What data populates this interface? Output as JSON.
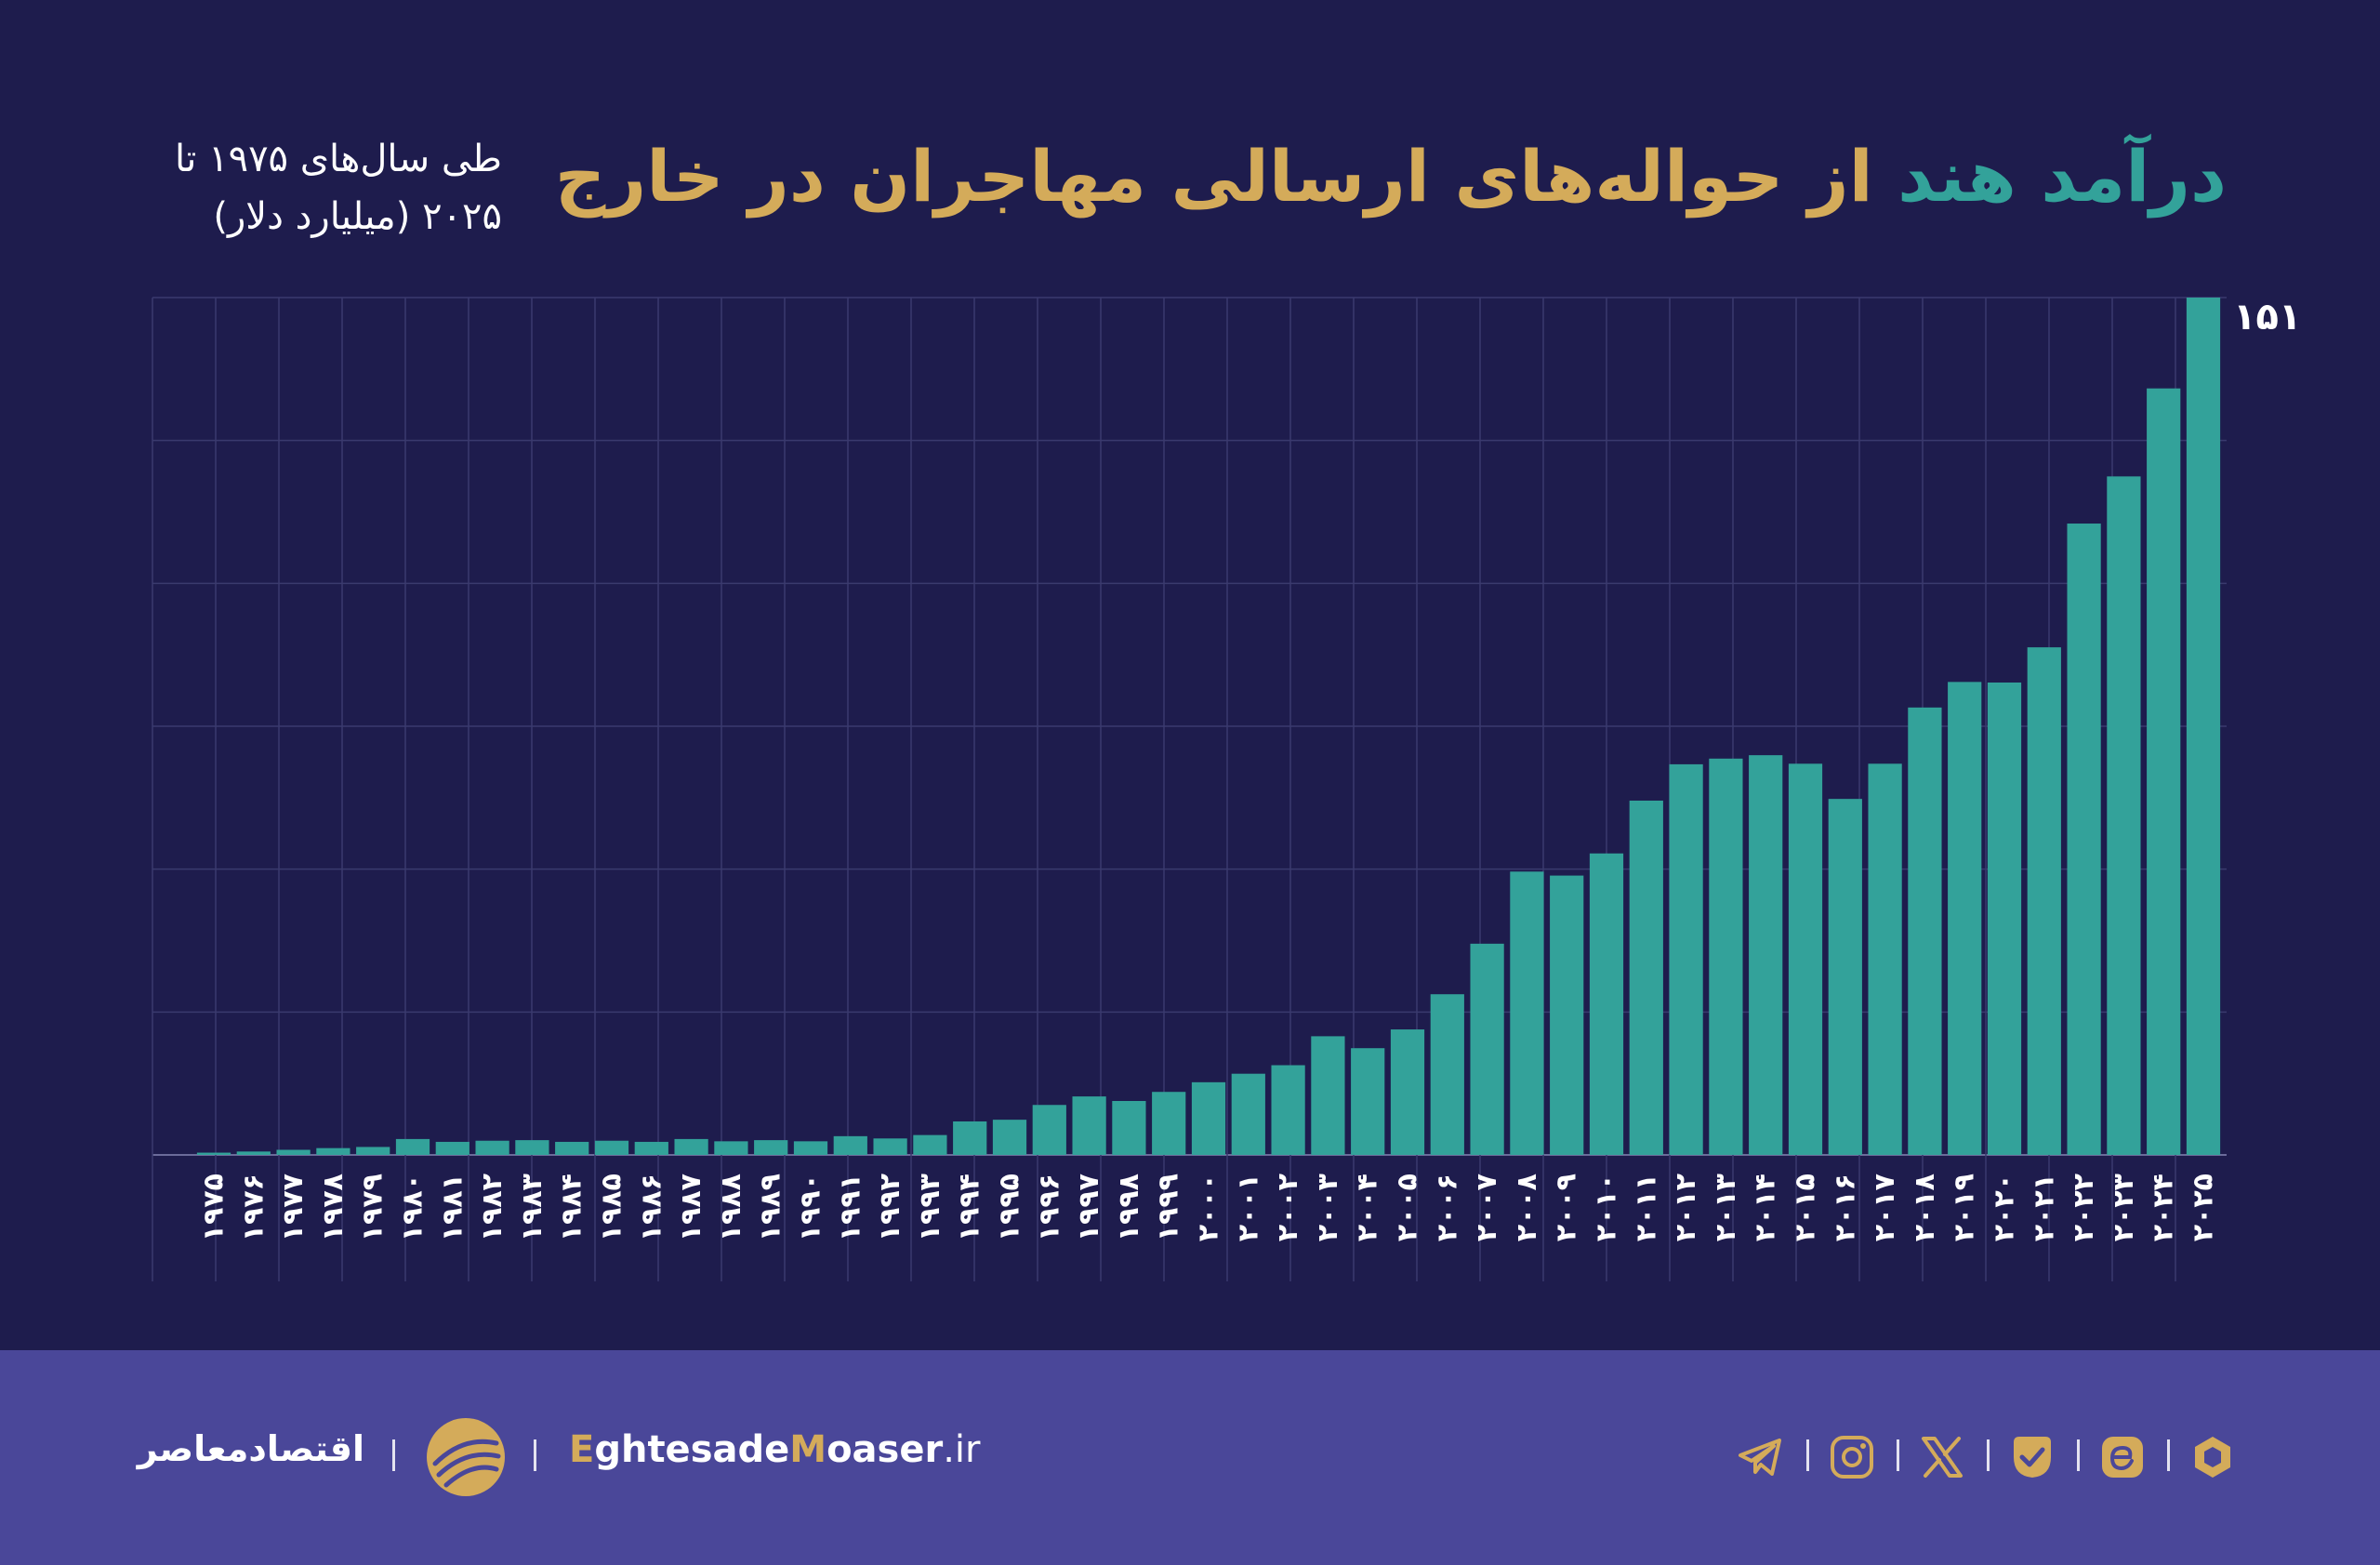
{
  "title": {
    "highlight": "درآمد هند",
    "rest": " از حواله‌های ارسالی مهاجران در خارج"
  },
  "subtitle": {
    "line1": "طی سال‌های ۱۹۷۵ تا",
    "line2": "۲۰۲۵ (میلیارد دلار)"
  },
  "chart_data": {
    "type": "bar",
    "title": "درآمد هند از حواله‌های ارسالی مهاجران در خارج",
    "subtitle": "طی سال‌های ۱۹۷۵ تا ۲۰۲۵ (میلیارد دلار)",
    "categories": [
      "۱۹۷۵",
      "۱۹۷۶",
      "۱۹۷۷",
      "۱۹۷۸",
      "۱۹۷۹",
      "۱۹۸۰",
      "۱۹۸۱",
      "۱۹۸۲",
      "۱۹۸۳",
      "۱۹۸۴",
      "۱۹۸۵",
      "۱۹۸۶",
      "۱۹۸۷",
      "۱۹۸۸",
      "۱۹۸۹",
      "۱۹۹۰",
      "۱۹۹۱",
      "۱۹۹۲",
      "۱۹۹۳",
      "۱۹۹۴",
      "۱۹۹۵",
      "۱۹۹۶",
      "۱۹۹۷",
      "۱۹۹۸",
      "۱۹۹۹",
      "۲۰۰۰",
      "۲۰۰۱",
      "۲۰۰۲",
      "۲۰۰۳",
      "۲۰۰۴",
      "۲۰۰۵",
      "۲۰۰۶",
      "۲۰۰۷",
      "۲۰۰۸",
      "۲۰۰۹",
      "۲۰۱۰",
      "۲۰۱۱",
      "۲۰۱۲",
      "۲۰۱۳",
      "۲۰۱۴",
      "۲۰۱۵",
      "۲۰۱۶",
      "۲۰۱۷",
      "۲۰۱۸",
      "۲۰۱۹",
      "۲۰۲۰",
      "۲۰۲۱",
      "۲۰۲۲",
      "۲۰۲۳",
      "۲۰۲۴",
      "۲۰۲۵"
    ],
    "values": [
      0.4,
      0.6,
      0.9,
      1.2,
      1.4,
      2.8,
      2.3,
      2.5,
      2.6,
      2.3,
      2.5,
      2.3,
      2.8,
      2.4,
      2.6,
      2.4,
      3.3,
      2.9,
      3.5,
      5.9,
      6.2,
      8.8,
      10.3,
      9.5,
      11.1,
      12.8,
      14.3,
      15.8,
      20.9,
      18.8,
      22.1,
      28.3,
      37.2,
      49.9,
      49.2,
      53.1,
      62.4,
      68.8,
      69.8,
      70.4,
      68.9,
      62.7,
      68.9,
      78.8,
      83.3,
      83.2,
      89.4,
      111.2,
      119.5,
      135.0,
      151.0
    ],
    "data_labels": [
      {
        "category": "۲۰۲۵",
        "text": "۱۵۱"
      }
    ],
    "ylim": [
      0,
      151
    ],
    "grid": true,
    "colors": {
      "bar": "#33a29a",
      "grid": "#3a3a6e",
      "axis": "#6b6b9a"
    }
  },
  "footer": {
    "brand_fa": "اقتصادمعاصر",
    "site": {
      "e": "E",
      "ghtesade": "ghtesade",
      "m": "M",
      "oaser": "oaser",
      "tld": ".ir"
    },
    "icons": [
      "telegram-icon",
      "instagram-icon",
      "x-icon",
      "bale-icon",
      "eitaa-icon",
      "rubika-icon"
    ]
  },
  "colors": {
    "background": "#1e1c4d",
    "footer": "#4a4799",
    "accent_teal": "#33a29a",
    "accent_gold": "#d4ab5a"
  }
}
